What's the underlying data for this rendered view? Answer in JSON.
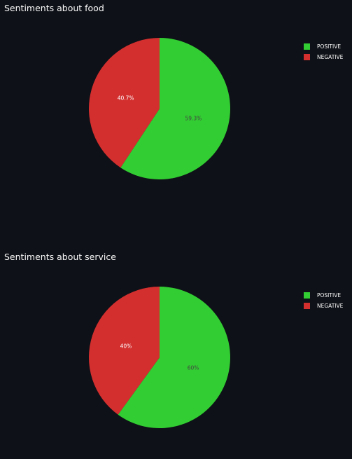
{
  "colors": {
    "background": "#0e1117",
    "positive": "#32cd32",
    "negative": "#d32f2f",
    "positive_label": "#444444",
    "negative_label": "#ffffff"
  },
  "chart_data": [
    {
      "type": "pie",
      "title": "Sentiments about food",
      "legend_position": "top-right",
      "slices": [
        {
          "label": "POSITIVE",
          "value": 59.3,
          "text": "59.3%",
          "color": "#32cd32"
        },
        {
          "label": "NEGATIVE",
          "value": 40.7,
          "text": "40.7%",
          "color": "#d32f2f"
        }
      ]
    },
    {
      "type": "pie",
      "title": "Sentiments about service",
      "legend_position": "top-right",
      "slices": [
        {
          "label": "POSITIVE",
          "value": 60,
          "text": "60%",
          "color": "#32cd32"
        },
        {
          "label": "NEGATIVE",
          "value": 40,
          "text": "40%",
          "color": "#d32f2f"
        }
      ]
    }
  ]
}
